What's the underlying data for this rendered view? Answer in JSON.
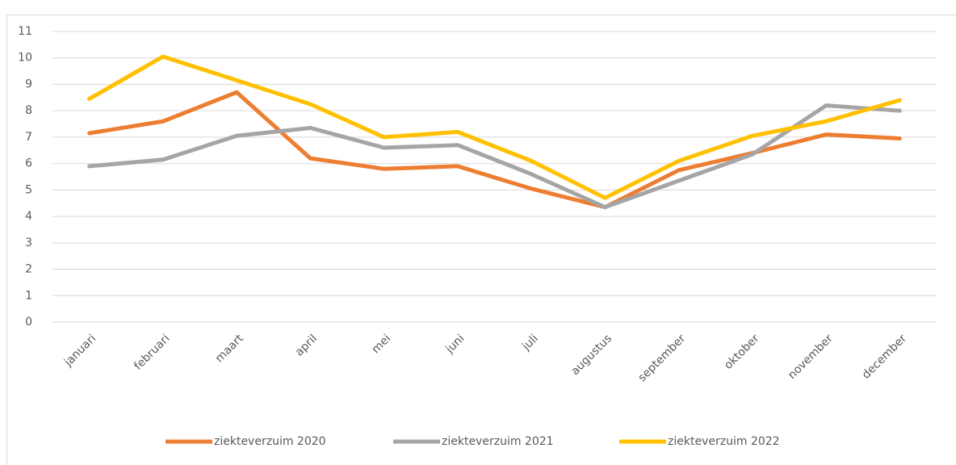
{
  "chart_data": {
    "type": "line",
    "categories": [
      "januari",
      "februari",
      "maart",
      "april",
      "mei",
      "juni",
      "juli",
      "augustus",
      "september",
      "oktober",
      "november",
      "december"
    ],
    "series": [
      {
        "name": "ziekteverzuim 2020",
        "color": "#ed7d31",
        "values": [
          7.15,
          7.6,
          8.7,
          6.2,
          5.8,
          5.9,
          5.05,
          4.35,
          5.75,
          6.4,
          7.1,
          6.95
        ]
      },
      {
        "name": "ziekteverzuim 2021",
        "color": "#a5a5a5",
        "values": [
          5.9,
          6.15,
          7.05,
          7.35,
          6.6,
          6.7,
          5.6,
          4.35,
          5.35,
          6.35,
          8.2,
          8.0
        ]
      },
      {
        "name": "ziekteverzuim 2022",
        "color": "#ffc000",
        "values": [
          8.45,
          10.05,
          9.15,
          8.25,
          7.0,
          7.2,
          6.1,
          4.7,
          6.1,
          7.05,
          7.6,
          8.4
        ]
      }
    ],
    "ylim": [
      0,
      11
    ],
    "yticks": [
      0,
      1,
      2,
      3,
      4,
      5,
      6,
      7,
      8,
      9,
      10,
      11
    ],
    "grid": true,
    "legend": "bottom"
  }
}
